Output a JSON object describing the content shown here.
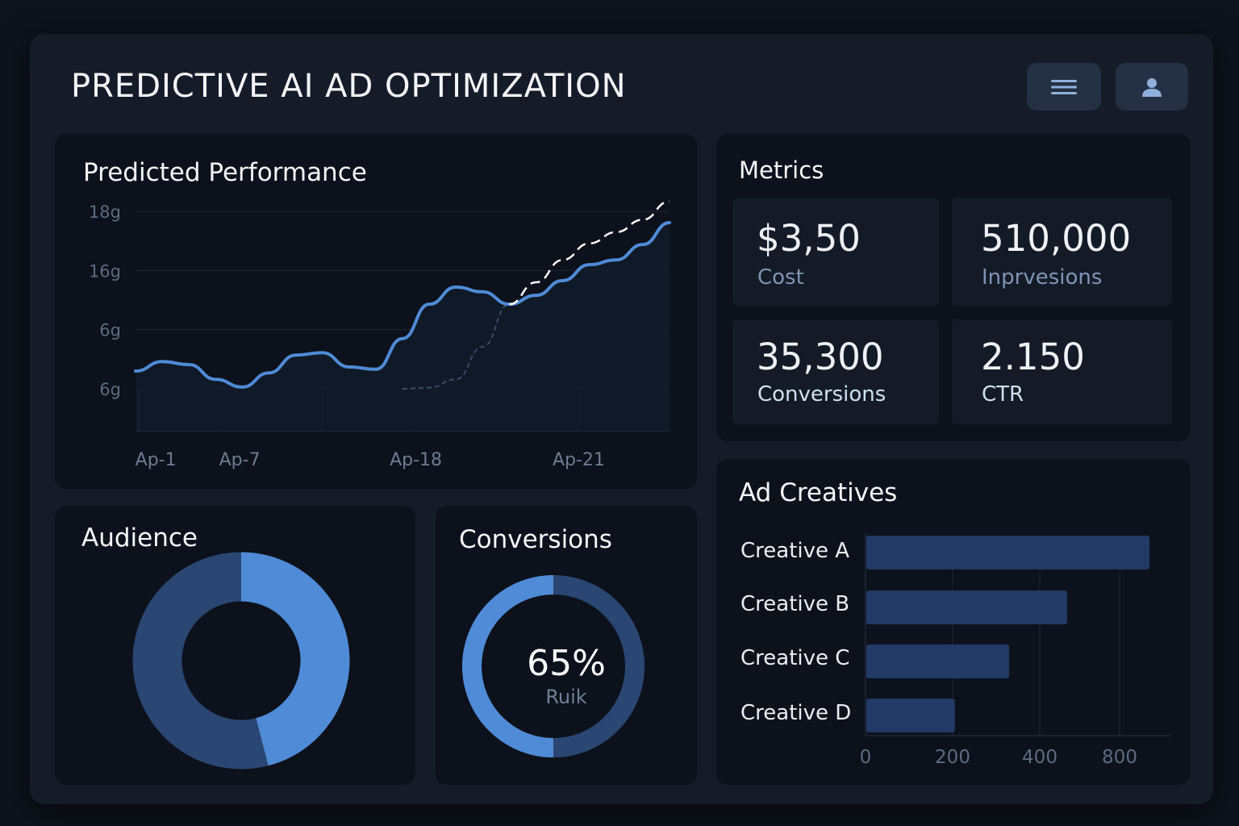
{
  "header": {
    "title": "PREDICTIVE AI AD OPTIMIZATION",
    "menu_icon": "hamburger-menu-icon",
    "user_icon": "user-icon"
  },
  "colors": {
    "accent": "#4f8bd6",
    "accent_dark": "#2a4672",
    "bar": "#213a66",
    "panel": "#0c111b",
    "frame": "#151c28"
  },
  "performance": {
    "title": "Predicted Performance",
    "chart_data": {
      "type": "line",
      "y_ticks": [
        {
          "value": 3,
          "label": "18g"
        },
        {
          "value": 2,
          "label": "16g"
        },
        {
          "value": 1,
          "label": "6g"
        },
        {
          "value": 0,
          "label": "6g"
        }
      ],
      "x_ticks": [
        {
          "value": 0.76,
          "label": "Ap-1"
        },
        {
          "value": 3.9,
          "label": "Ap-7"
        },
        {
          "value": 10.5,
          "label": "Ap-18"
        },
        {
          "value": 16.6,
          "label": "Ap-21"
        }
      ],
      "xlim": [
        0,
        20
      ],
      "ylim": [
        -0.72,
        3.2
      ],
      "grid": true,
      "series": [
        {
          "style": "solid",
          "color": "#4f8bd6",
          "x": [
            0,
            1,
            2,
            3,
            4,
            5,
            6,
            7,
            8,
            9,
            10,
            11,
            12,
            13,
            14,
            15,
            16,
            17,
            18,
            19,
            20
          ],
          "y": [
            0.3,
            0.46,
            0.41,
            0.16,
            0.03,
            0.27,
            0.57,
            0.61,
            0.37,
            0.33,
            0.85,
            1.43,
            1.72,
            1.64,
            1.43,
            1.58,
            1.83,
            2.1,
            2.18,
            2.44,
            2.81
          ]
        },
        {
          "style": "dashed",
          "color": "#ffffff",
          "x": [
            14,
            15,
            16,
            17,
            18,
            19,
            20
          ],
          "y": [
            1.43,
            1.8,
            2.18,
            2.46,
            2.65,
            2.86,
            3.17
          ]
        },
        {
          "style": "faint-dashed",
          "color": "#3a4a63",
          "x": [
            10,
            11,
            12,
            13,
            14
          ],
          "y": [
            0,
            0.02,
            0.16,
            0.71,
            1.43
          ]
        }
      ]
    }
  },
  "metrics": {
    "title": "Metrics",
    "items": [
      {
        "value": "$3,50",
        "label": "Cost"
      },
      {
        "value": "510,000",
        "label": "Inprvesions"
      },
      {
        "value": "35,300",
        "label": "Conversions"
      },
      {
        "value": "2.150",
        "label": "CTR"
      }
    ]
  },
  "audience": {
    "title": "Audience",
    "chart_data": {
      "type": "pie",
      "donut": true,
      "values": [
        46,
        54
      ],
      "colors": [
        "#4f8bd6",
        "#2a4672"
      ]
    }
  },
  "conversions": {
    "title": "Conversions",
    "value": "65%",
    "sublabel": "Ruik",
    "fill_fraction": 0.5
  },
  "creatives": {
    "title": "Ad Creatives",
    "chart_data": {
      "type": "bar",
      "orientation": "horizontal",
      "categories": [
        "Creative A",
        "Creative B",
        "Creative C",
        "Creative D"
      ],
      "values": [
        950,
        537,
        330,
        205
      ],
      "x_ticks": [
        "0",
        "200",
        "400",
        "800"
      ],
      "grid": true
    }
  }
}
